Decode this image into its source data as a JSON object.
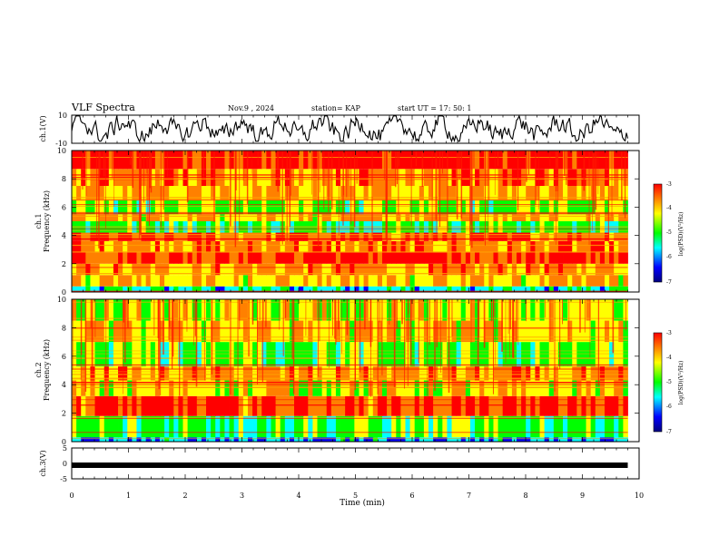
{
  "header": {
    "title": "VLF Spectra",
    "date": "Nov.9 , 2024",
    "station": "station= KAP",
    "start_ut": "start UT = 17: 50: 1"
  },
  "chart_data": [
    {
      "type": "line",
      "panel": "ch1-waveform",
      "ylabel": "ch.1(V)",
      "ylim": [
        -10,
        10
      ],
      "yticks": [
        "10",
        "-10"
      ],
      "x_range_min": [
        0,
        9.8
      ]
    },
    {
      "type": "heatmap",
      "panel": "ch1-spectrogram",
      "ylabel_top": "ch.1",
      "ylabel": "Frequency (kHz)",
      "ylim": [
        0,
        10
      ],
      "yticks": [
        "0",
        "2",
        "4",
        "6",
        "8",
        "10"
      ],
      "x_range_min": [
        0,
        9.8
      ],
      "colorbar": {
        "label": "log(PSD)(V²/Hz)",
        "ticks": [
          "-3",
          "-4",
          "-5",
          "-6",
          "-7"
        ],
        "range": [
          -7,
          -3
        ]
      },
      "bands_khz": [
        {
          "from": 0.0,
          "to": 0.4,
          "level": -5.5
        },
        {
          "from": 0.4,
          "to": 1.2,
          "level": -4.2
        },
        {
          "from": 1.2,
          "to": 2.0,
          "level": -4.0
        },
        {
          "from": 2.0,
          "to": 2.8,
          "level": -3.4
        },
        {
          "from": 2.8,
          "to": 3.6,
          "level": -3.9
        },
        {
          "from": 3.6,
          "to": 4.2,
          "level": -3.7
        },
        {
          "from": 4.2,
          "to": 5.0,
          "level": -5.0
        },
        {
          "from": 5.0,
          "to": 5.5,
          "level": -4.2
        },
        {
          "from": 5.5,
          "to": 6.5,
          "level": -4.8
        },
        {
          "from": 6.5,
          "to": 7.5,
          "level": -4.1
        },
        {
          "from": 7.5,
          "to": 8.7,
          "level": -3.9
        },
        {
          "from": 8.7,
          "to": 10.0,
          "level": -3.3
        }
      ]
    },
    {
      "type": "heatmap",
      "panel": "ch2-spectrogram",
      "ylabel_top": "ch.2",
      "ylabel": "Frequency (kHz)",
      "ylim": [
        0,
        10
      ],
      "yticks": [
        "0",
        "2",
        "4",
        "6",
        "8",
        "10"
      ],
      "x_range_min": [
        0,
        9.8
      ],
      "colorbar": {
        "label": "log(PSD)(V²/Hz)",
        "ticks": [
          "-3",
          "-4",
          "-5",
          "-6",
          "-7"
        ],
        "range": [
          -7,
          -3
        ]
      },
      "bands_khz": [
        {
          "from": 0.0,
          "to": 0.3,
          "level": -5.8
        },
        {
          "from": 0.3,
          "to": 1.8,
          "level": -5.0
        },
        {
          "from": 1.8,
          "to": 3.2,
          "level": -3.6
        },
        {
          "from": 3.2,
          "to": 4.3,
          "level": -4.4
        },
        {
          "from": 4.3,
          "to": 5.3,
          "level": -4.0
        },
        {
          "from": 5.3,
          "to": 7.0,
          "level": -4.9
        },
        {
          "from": 7.0,
          "to": 8.5,
          "level": -4.3
        },
        {
          "from": 8.5,
          "to": 10.0,
          "level": -4.6
        }
      ]
    },
    {
      "type": "line",
      "panel": "ch3-waveform",
      "ylabel": "ch.3(V)",
      "ylim": [
        -5,
        5
      ],
      "yticks": [
        "5",
        "0",
        "-5"
      ],
      "x_range_min": [
        0,
        9.8
      ],
      "level_v": -0.6
    }
  ],
  "x_axis": {
    "label": "Time (min)",
    "ticks": [
      "0",
      "1",
      "2",
      "3",
      "4",
      "5",
      "6",
      "7",
      "8",
      "9",
      "10"
    ],
    "range": [
      0,
      10
    ]
  },
  "colors": {
    "colormap": [
      "#00007f",
      "#0000ff",
      "#00ffff",
      "#00ff00",
      "#ffff00",
      "#ff8000",
      "#ff0000"
    ]
  }
}
